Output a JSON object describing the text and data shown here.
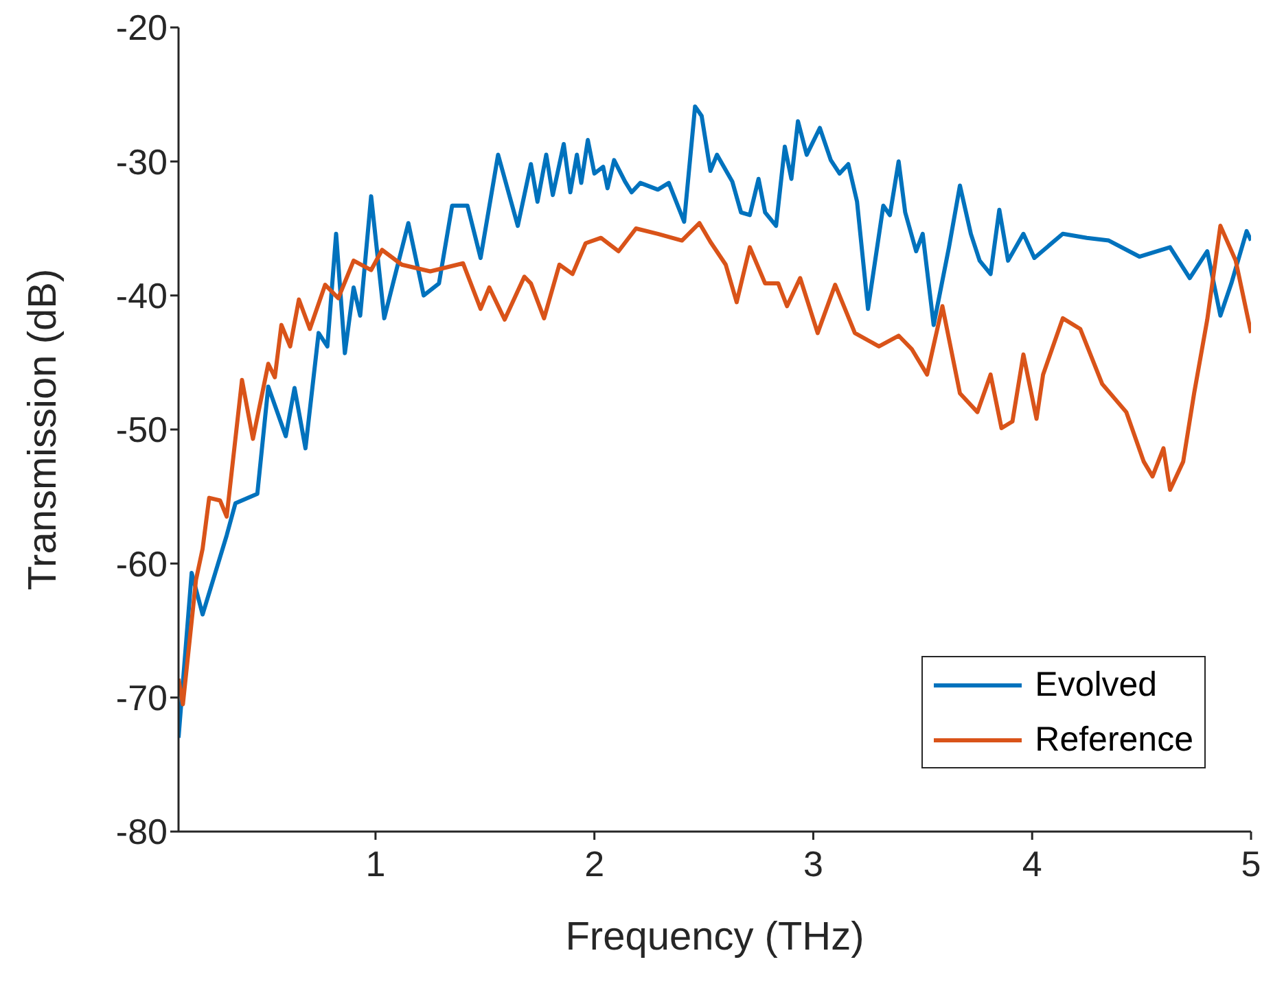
{
  "chart_data": {
    "type": "line",
    "xlabel": "Frequency (THz)",
    "ylabel": "Transmission (dB)",
    "xlim": [
      0.1,
      5
    ],
    "xticks": [
      1,
      2,
      3,
      4,
      5
    ],
    "ylim": [
      -80,
      -20
    ],
    "yticks": [
      -80,
      -70,
      -60,
      -50,
      -40,
      -30,
      -20
    ],
    "grid": false,
    "legend": "bottom right",
    "marker": "none",
    "line_style": "solid",
    "series": [
      {
        "name": "Evolved",
        "color": "#0072bd",
        "x": [
          0.1,
          0.16,
          0.21,
          0.32,
          0.36,
          0.46,
          0.51,
          0.59,
          0.63,
          0.68,
          0.74,
          0.78,
          0.82,
          0.86,
          0.9,
          0.93,
          0.98,
          1.04,
          1.08,
          1.15,
          1.22,
          1.29,
          1.35,
          1.42,
          1.48,
          1.56,
          1.65,
          1.71,
          1.74,
          1.78,
          1.81,
          1.86,
          1.89,
          1.92,
          1.94,
          1.97,
          2.0,
          2.04,
          2.06,
          2.09,
          2.14,
          2.17,
          2.21,
          2.29,
          2.34,
          2.41,
          2.46,
          2.49,
          2.53,
          2.56,
          2.63,
          2.67,
          2.71,
          2.75,
          2.78,
          2.83,
          2.87,
          2.9,
          2.93,
          2.97,
          3.03,
          3.08,
          3.12,
          3.16,
          3.2,
          3.25,
          3.32,
          3.35,
          3.39,
          3.42,
          3.47,
          3.5,
          3.55,
          3.62,
          3.67,
          3.72,
          3.76,
          3.81,
          3.85,
          3.89,
          3.96,
          4.01,
          4.14,
          4.25,
          4.35,
          4.49,
          4.63,
          4.72,
          4.8,
          4.86,
          4.91,
          4.98,
          5.0
        ],
        "values": [
          -73,
          -60.7,
          -63.8,
          -57.9,
          -55.5,
          -54.8,
          -46.8,
          -50.5,
          -46.9,
          -51.4,
          -42.8,
          -43.8,
          -35.4,
          -44.3,
          -39.4,
          -41.5,
          -32.6,
          -41.7,
          -39.1,
          -34.6,
          -40,
          -39.1,
          -33.3,
          -33.3,
          -37.2,
          -29.5,
          -34.8,
          -30.2,
          -33,
          -29.5,
          -32.5,
          -28.7,
          -32.3,
          -29.5,
          -31.6,
          -28.4,
          -30.9,
          -30.4,
          -32,
          -29.9,
          -31.5,
          -32.3,
          -31.6,
          -32.1,
          -31.6,
          -34.5,
          -25.9,
          -26.6,
          -30.7,
          -29.5,
          -31.5,
          -33.8,
          -34,
          -31.3,
          -33.8,
          -34.8,
          -28.9,
          -31.3,
          -27,
          -29.5,
          -27.5,
          -29.9,
          -30.9,
          -30.2,
          -33,
          -41,
          -33.3,
          -34,
          -30,
          -33.8,
          -36.7,
          -35.4,
          -42.2,
          -36.4,
          -31.8,
          -35.4,
          -37.4,
          -38.4,
          -33.6,
          -37.4,
          -35.4,
          -37.2,
          -35.4,
          -35.7,
          -35.9,
          -37.1,
          -36.4,
          -38.7,
          -36.7,
          -41.5,
          -39.1,
          -35.2,
          -35.9
        ]
      },
      {
        "name": "Reference",
        "color": "#d95319",
        "x": [
          0.1,
          0.12,
          0.18,
          0.21,
          0.24,
          0.29,
          0.32,
          0.39,
          0.44,
          0.51,
          0.54,
          0.57,
          0.61,
          0.65,
          0.7,
          0.77,
          0.83,
          0.9,
          0.98,
          1.03,
          1.12,
          1.25,
          1.4,
          1.48,
          1.52,
          1.59,
          1.68,
          1.71,
          1.77,
          1.84,
          1.9,
          1.96,
          2.03,
          2.11,
          2.19,
          2.29,
          2.4,
          2.48,
          2.53,
          2.6,
          2.65,
          2.71,
          2.78,
          2.84,
          2.88,
          2.94,
          3.02,
          3.1,
          3.19,
          3.3,
          3.39,
          3.45,
          3.52,
          3.59,
          3.67,
          3.75,
          3.81,
          3.86,
          3.91,
          3.96,
          4.02,
          4.05,
          4.14,
          4.22,
          4.32,
          4.43,
          4.51,
          4.55,
          4.6,
          4.63,
          4.69,
          4.74,
          4.8,
          4.86,
          4.93,
          5.0
        ],
        "values": [
          -68.6,
          -70.5,
          -61.2,
          -58.9,
          -55.1,
          -55.3,
          -56.5,
          -46.3,
          -50.7,
          -45.1,
          -46.1,
          -42.2,
          -43.8,
          -40.3,
          -42.5,
          -39.2,
          -40.2,
          -37.4,
          -38.1,
          -36.6,
          -37.7,
          -38.2,
          -37.6,
          -41,
          -39.4,
          -41.8,
          -38.6,
          -39.1,
          -41.7,
          -37.7,
          -38.4,
          -36.1,
          -35.7,
          -36.7,
          -35,
          -35.4,
          -35.9,
          -34.6,
          -36,
          -37.7,
          -40.5,
          -36.4,
          -39.1,
          -39.1,
          -40.8,
          -38.7,
          -42.8,
          -39.2,
          -42.8,
          -43.8,
          -43,
          -44,
          -45.9,
          -40.8,
          -47.3,
          -48.7,
          -45.9,
          -49.9,
          -49.4,
          -44.4,
          -49.2,
          -45.9,
          -41.7,
          -42.5,
          -46.6,
          -48.7,
          -52.4,
          -53.5,
          -51.4,
          -54.5,
          -52.4,
          -47.3,
          -41.8,
          -34.8,
          -37.4,
          -42.8
        ]
      }
    ]
  }
}
